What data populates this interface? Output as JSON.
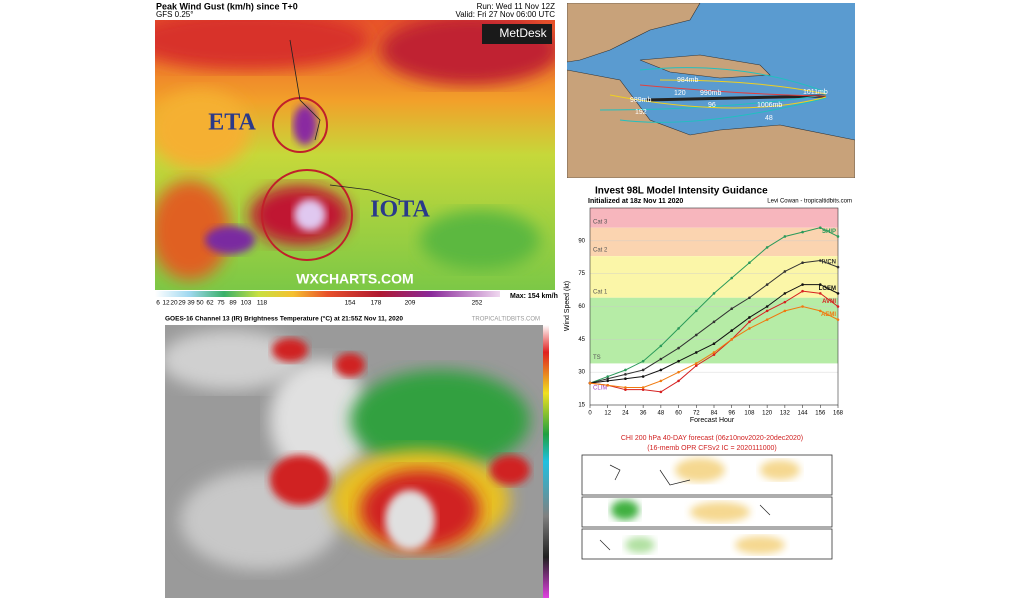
{
  "wind_map": {
    "title": "Peak Wind Gust (km/h) since T+0",
    "model": "GFS 0.25°",
    "run": "Run: Wed 11 Nov 12Z",
    "valid": "Valid: Fri 27 Nov 06:00 UTC",
    "brand": "MetDesk",
    "storm_a": "ETA",
    "storm_b": "IOTA",
    "watermark": "WXCHARTS.COM",
    "colorbar_ticks": [
      6,
      12,
      20,
      29,
      39,
      50,
      62,
      75,
      89,
      103,
      118,
      154,
      178,
      209,
      252
    ],
    "max_label": "Max: 154 km/h"
  },
  "track_map": {
    "labels": [
      "984mb",
      "989mb",
      "990mb",
      "1006mb",
      "1011mb",
      "120",
      "192",
      "96",
      "48"
    ]
  },
  "chart_data": {
    "type": "line",
    "title": "Invest 98L Model Intensity Guidance",
    "subtitle": "Initialized at 18z Nov 11 2020",
    "credit": "Levi Cowan - tropicaltidbits.com",
    "y_label": "Wind Speed (kt)",
    "x_label": "Forecast Hour",
    "annotation": "CLIM",
    "x": [
      0,
      12,
      24,
      36,
      48,
      60,
      72,
      84,
      96,
      108,
      120,
      132,
      144,
      156,
      168
    ],
    "xlim": [
      0,
      168
    ],
    "xticks": [
      0,
      12,
      24,
      36,
      48,
      60,
      72,
      84,
      96,
      108,
      120,
      132,
      144,
      156,
      168
    ],
    "ylim": [
      15,
      105
    ],
    "yticks": [
      15,
      30,
      45,
      60,
      75,
      90
    ],
    "bands": [
      {
        "name": "Cat 3",
        "low": 96,
        "color": "#f7b6bd"
      },
      {
        "name": "Cat 2",
        "low": 83,
        "color": "#fbd4b0"
      },
      {
        "name": "Cat 1",
        "low": 64,
        "color": "#fbf6a8"
      },
      {
        "name": "TS",
        "low": 34,
        "color": "#b6eca6"
      }
    ],
    "series": [
      {
        "name": "SHIP",
        "color": "#2a9a5a",
        "values": [
          25,
          28,
          31,
          35,
          42,
          50,
          58,
          66,
          73,
          80,
          87,
          92,
          94,
          96,
          92
        ]
      },
      {
        "name": "IVCN",
        "color": "#333333",
        "values": [
          25,
          27,
          29,
          31,
          36,
          41,
          47,
          53,
          59,
          64,
          70,
          76,
          80,
          81,
          78
        ]
      },
      {
        "name": "LGEM",
        "color": "#111111",
        "values": [
          25,
          26,
          27,
          28,
          31,
          35,
          39,
          43,
          49,
          55,
          60,
          66,
          70,
          70,
          66
        ]
      },
      {
        "name": "AVNI",
        "color": "#d62020",
        "values": [
          25,
          24,
          22,
          22,
          21,
          26,
          33,
          38,
          45,
          53,
          58,
          62,
          67,
          66,
          60
        ]
      },
      {
        "name": "AEMI",
        "color": "#f07a10",
        "values": [
          25,
          24,
          23,
          23,
          26,
          30,
          34,
          39,
          45,
          50,
          54,
          58,
          60,
          58,
          54
        ]
      }
    ]
  },
  "satellite": {
    "title": "GOES-16 Channel 13 (IR) Brightness Temperature (°C) at 21:55Z Nov 11, 2020",
    "credit": "TROPICALTIDBITS.COM"
  },
  "olr": {
    "title": "CHI 200 hPa 40-DAY forecast (06z10nov2020-20dec2020)",
    "subtitle": "(16-memb OPR CFSv2 IC = 2020111000)"
  }
}
